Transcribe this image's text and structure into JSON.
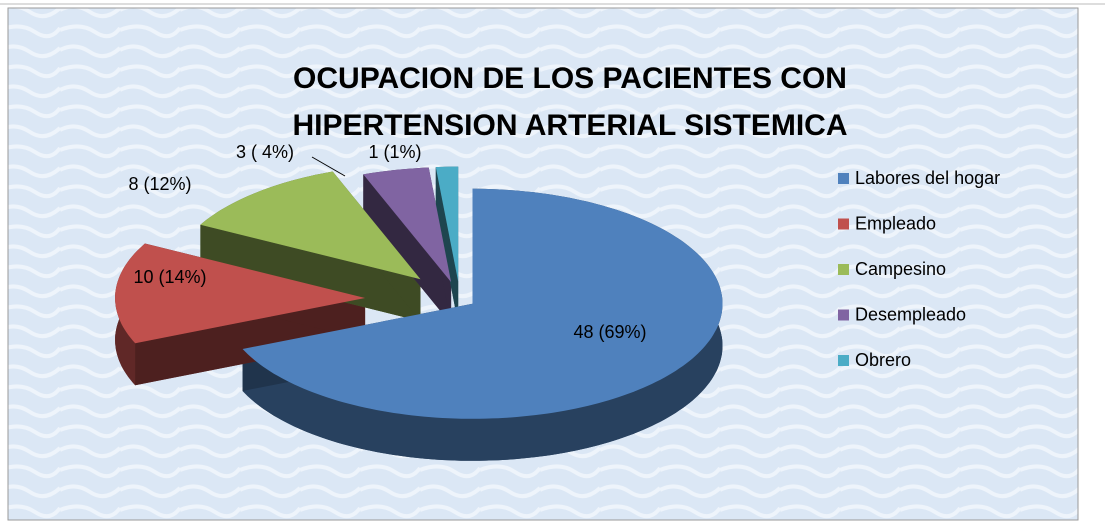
{
  "chart_data": {
    "type": "pie",
    "title": [
      "OCUPACION DE LOS PACIENTES CON",
      "HIPERTENSION ARTERIAL SISTEMICA"
    ],
    "categories": [
      "Labores del hogar",
      "Empleado",
      "Campesino",
      "Desempleado",
      "Obrero"
    ],
    "values": [
      48,
      10,
      8,
      3,
      1
    ],
    "value_labels": [
      "48 (69%)",
      "10 (14%)",
      "8  (12%)",
      "3 ( 4%)",
      "1 (1%)"
    ],
    "colors": [
      "#4f81bd",
      "#c0504d",
      "#9bbb59",
      "#8064a2",
      "#4bacc6"
    ],
    "legend": "right"
  }
}
